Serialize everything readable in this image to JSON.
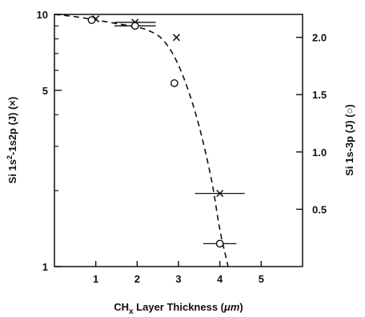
{
  "chart_data": {
    "type": "scatter",
    "title": "",
    "x_axis": {
      "label_base": "CH",
      "label_sub": "x",
      "label_rest": " Layer Thickness (",
      "label_mu": "μm",
      "label_end": ")",
      "range": [
        0,
        6
      ],
      "ticks": [
        1,
        2,
        3,
        4,
        5
      ],
      "tick_labels": [
        "1",
        "2",
        "3",
        "4",
        "5"
      ]
    },
    "y_left": {
      "label_a": "Si 1s",
      "label_sup": "2",
      "label_b": "-1s2p (J) (×)",
      "scale": "log",
      "range": [
        1,
        10
      ],
      "labeled_ticks": [
        1,
        5,
        10
      ],
      "tick_labels": [
        "1",
        "5",
        "10"
      ],
      "minor_ticks": [
        2,
        3,
        4,
        6,
        7,
        8,
        9
      ]
    },
    "y_right": {
      "label": "Si 1s-3p (J) (○)",
      "scale": "linear",
      "range": [
        0,
        2.2
      ],
      "ticks": [
        0.5,
        1.0,
        1.5,
        2.0
      ],
      "tick_labels": [
        "0.5",
        "1.0",
        "1.5",
        "2.0"
      ]
    },
    "series": [
      {
        "marker": "x",
        "axis": "left",
        "points": [
          {
            "x": 1.0,
            "y": 9.6,
            "xerr": 0.0
          },
          {
            "x": 1.95,
            "y": 9.3,
            "xerr": 0.5
          },
          {
            "x": 2.95,
            "y": 8.1,
            "xerr": 0.0
          },
          {
            "x": 4.0,
            "y": 1.95,
            "xerr": 0.6
          }
        ]
      },
      {
        "marker": "o",
        "axis": "right",
        "points": [
          {
            "x": 0.9,
            "y": 2.15,
            "xerr": 0.0
          },
          {
            "x": 1.95,
            "y": 2.1,
            "xerr": 0.5
          },
          {
            "x": 2.9,
            "y": 1.6,
            "xerr": 0.0
          },
          {
            "x": 4.0,
            "y": 0.2,
            "xerr": 0.4
          }
        ]
      }
    ],
    "fit_curve": {
      "style": "dashed",
      "axis": "left",
      "x": [
        0.0,
        0.5,
        1.0,
        1.5,
        2.0,
        2.3,
        2.6,
        2.9,
        3.2,
        3.5,
        3.8,
        4.0,
        4.2
      ],
      "y": [
        10.0,
        9.8,
        9.5,
        9.2,
        8.9,
        8.6,
        8.0,
        6.8,
        5.2,
        3.6,
        2.2,
        1.4,
        1.0
      ]
    }
  }
}
